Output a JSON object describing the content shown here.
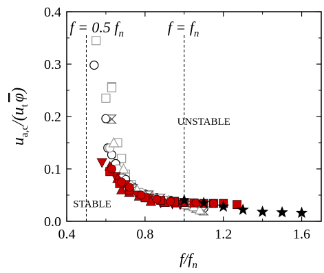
{
  "chart_data": {
    "type": "scatter",
    "xlim": [
      0.4,
      1.7
    ],
    "ylim": [
      0.0,
      0.4
    ],
    "x_ticks": [
      0.4,
      0.8,
      1.2,
      1.6
    ],
    "y_ticks": [
      0.0,
      0.1,
      0.2,
      0.3,
      0.4
    ],
    "x_tick_labels": [
      "0.4",
      "0.8",
      "1.2",
      "1.6"
    ],
    "y_tick_labels": [
      "0.0",
      "0.1",
      "0.2",
      "0.3",
      "0.4"
    ],
    "xlabel": {
      "main": "f/f",
      "sub": "n"
    },
    "ylabel": {
      "u": "u",
      "u_sub": "a,c",
      "mid": "/(u",
      "t_sub": "t",
      "phi": "φ",
      "close": ")"
    },
    "grid": false,
    "vlines": [
      {
        "x": 0.5,
        "label_main": "f = 0.5 f",
        "label_sub": "n"
      },
      {
        "x": 1.0,
        "label_main": "f = f",
        "label_sub": "n"
      }
    ],
    "annotations": [
      {
        "text": "UNSTABLE",
        "x": 1.1,
        "y": 0.184
      },
      {
        "text": "STABLE",
        "x": 0.53,
        "y": 0.027
      }
    ],
    "series": [
      {
        "marker": "open-square",
        "color": "#999999",
        "points": [
          [
            0.55,
            0.345
          ],
          [
            0.6,
            0.235
          ],
          [
            0.63,
            0.257
          ],
          [
            0.63,
            0.255
          ],
          [
            0.66,
            0.15
          ],
          [
            0.68,
            0.12
          ],
          [
            0.7,
            0.09
          ],
          [
            0.73,
            0.07
          ],
          [
            0.77,
            0.05
          ],
          [
            0.82,
            0.045
          ],
          [
            0.9,
            0.04
          ],
          [
            1.0,
            0.035
          ]
        ]
      },
      {
        "marker": "open-circle",
        "color": "#000000",
        "points": [
          [
            0.54,
            0.298
          ],
          [
            0.6,
            0.196
          ],
          [
            0.61,
            0.14
          ],
          [
            0.63,
            0.127
          ],
          [
            0.65,
            0.11
          ],
          [
            0.67,
            0.095
          ],
          [
            0.7,
            0.08
          ],
          [
            0.74,
            0.065
          ],
          [
            0.8,
            0.052
          ],
          [
            0.86,
            0.045
          ],
          [
            0.93,
            0.04
          ],
          [
            1.0,
            0.035
          ],
          [
            1.05,
            0.03
          ],
          [
            1.1,
            0.025
          ]
        ]
      },
      {
        "marker": "open-circle",
        "color": "#999999",
        "points": [
          [
            0.62,
            0.14
          ],
          [
            0.66,
            0.1
          ],
          [
            0.72,
            0.07
          ],
          [
            0.78,
            0.055
          ],
          [
            0.84,
            0.045
          ],
          [
            0.9,
            0.04
          ],
          [
            0.96,
            0.035
          ],
          [
            1.02,
            0.03
          ],
          [
            1.08,
            0.02
          ]
        ]
      },
      {
        "marker": "open-hourglass",
        "color": "#555555",
        "points": [
          [
            0.63,
            0.195
          ],
          [
            0.68,
            0.082
          ],
          [
            0.74,
            0.062
          ],
          [
            0.82,
            0.05
          ],
          [
            0.88,
            0.044
          ],
          [
            0.95,
            0.038
          ],
          [
            1.02,
            0.03
          ],
          [
            1.06,
            0.025
          ],
          [
            1.1,
            0.02
          ]
        ]
      },
      {
        "marker": "open-triangle",
        "color": "#999999",
        "points": [
          [
            0.64,
            0.15
          ],
          [
            0.69,
            0.1
          ],
          [
            0.76,
            0.06
          ],
          [
            0.84,
            0.046
          ],
          [
            0.92,
            0.04
          ],
          [
            1.0,
            0.032
          ],
          [
            1.05,
            0.028
          ],
          [
            1.08,
            0.022
          ]
        ]
      },
      {
        "marker": "filled-triangle-down",
        "color": "#cc0000",
        "points": [
          [
            0.58,
            0.112
          ],
          [
            0.65,
            0.085
          ],
          [
            0.7,
            0.07
          ],
          [
            0.76,
            0.05
          ],
          [
            0.82,
            0.043
          ],
          [
            0.88,
            0.035
          ],
          [
            0.94,
            0.033
          ],
          [
            0.98,
            0.032
          ]
        ]
      },
      {
        "marker": "filled-triangle-up",
        "color": "#cc0000",
        "points": [
          [
            0.62,
            0.105
          ],
          [
            0.66,
            0.082
          ],
          [
            0.68,
            0.06
          ],
          [
            0.72,
            0.055
          ],
          [
            0.77,
            0.048
          ],
          [
            0.83,
            0.038
          ],
          [
            0.9,
            0.036
          ],
          [
            0.96,
            0.035
          ]
        ]
      },
      {
        "marker": "filled-square",
        "color": "#cc0000",
        "points": [
          [
            0.62,
            0.095
          ],
          [
            0.67,
            0.072
          ],
          [
            0.72,
            0.06
          ],
          [
            0.8,
            0.045
          ],
          [
            0.88,
            0.04
          ],
          [
            0.95,
            0.037
          ],
          [
            1.0,
            0.036
          ],
          [
            1.05,
            0.035
          ],
          [
            1.1,
            0.034
          ],
          [
            1.15,
            0.034
          ],
          [
            1.2,
            0.034
          ],
          [
            1.27,
            0.032
          ]
        ]
      },
      {
        "marker": "filled-circle",
        "color": "#cc0000",
        "points": [
          [
            0.63,
            0.1
          ],
          [
            0.68,
            0.075
          ],
          [
            0.72,
            0.065
          ],
          [
            0.78,
            0.05
          ],
          [
            0.86,
            0.042
          ],
          [
            0.93,
            0.038
          ],
          [
            1.0,
            0.036
          ],
          [
            1.06,
            0.035
          ],
          [
            1.15,
            0.034
          ]
        ]
      },
      {
        "marker": "filled-star",
        "color": "#000000",
        "points": [
          [
            1.0,
            0.04
          ],
          [
            1.1,
            0.035
          ],
          [
            1.2,
            0.028
          ],
          [
            1.3,
            0.022
          ],
          [
            1.4,
            0.018
          ],
          [
            1.5,
            0.017
          ],
          [
            1.6,
            0.016
          ]
        ]
      }
    ]
  }
}
